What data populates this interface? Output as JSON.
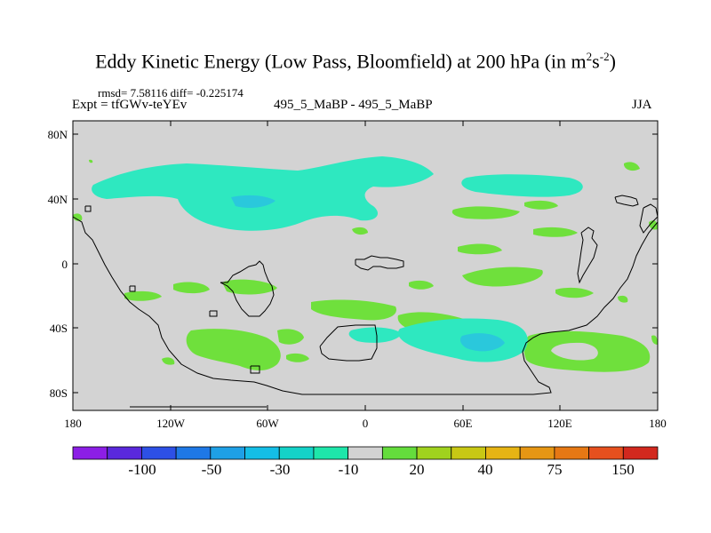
{
  "title": {
    "main": "Eddy Kinetic Energy (Low Pass, Bloomfield) at 200 hPa (in m",
    "exp1": "2",
    "mid": "s",
    "exp2": "-2",
    "close": ")"
  },
  "stats": "rmsd= 7.58116 diff= -0.225174",
  "expt": "Expt = tfGWv-teYEv",
  "pair": "495_5_MaBP - 495_5_MaBP",
  "season": "JJA",
  "axes": {
    "y_ticks": [
      "80N",
      "40N",
      "0",
      "40S",
      "80S"
    ],
    "x_ticks": [
      "180",
      "120W",
      "60W",
      "0",
      "60E",
      "120E",
      "180"
    ]
  },
  "colorbar": {
    "labels": [
      "-100",
      "-50",
      "-30",
      "-10",
      "20",
      "40",
      "75",
      "150"
    ],
    "colors": [
      "#8c1ee6",
      "#5a28dc",
      "#2d50e6",
      "#1e78e6",
      "#1ea0e6",
      "#14bee6",
      "#14d2c8",
      "#1ee6aa",
      "#d2d2d2",
      "#64dc3c",
      "#a0d21e",
      "#c8c814",
      "#e6b414",
      "#e69614",
      "#e67814",
      "#e6501e",
      "#d2281e"
    ]
  },
  "colors": {
    "background_field": "#d3d3d3",
    "positive_field": "#6fe03c",
    "negative_field": "#2ee8c0",
    "negative_strong": "#2ac8dc"
  }
}
